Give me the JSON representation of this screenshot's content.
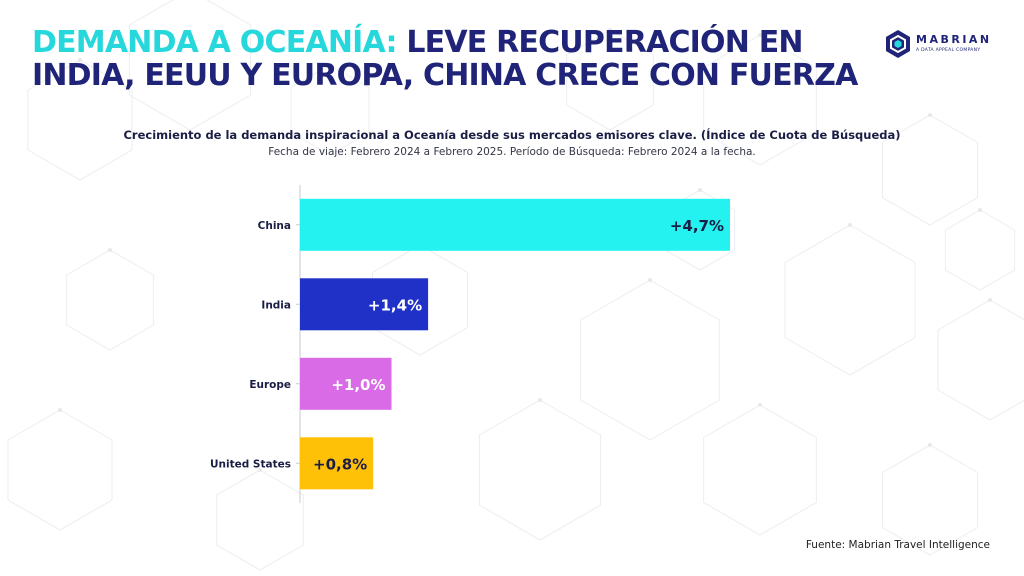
{
  "header": {
    "title_accent": "DEMANDA A OCEANÍA:",
    "title_rest": " LEVE RECUPERACIÓN EN INDIA, EEUU Y EUROPA, CHINA CRECE CON FUERZA",
    "brand_name": "MABRIAN",
    "brand_tagline": "A DATA APPEAL COMPANY"
  },
  "colors": {
    "title_accent": "#26d7dc",
    "title_main": "#1f2478",
    "china": "#24f2f0",
    "india": "#2031c7",
    "europe": "#d96be6",
    "united_states": "#ffc107"
  },
  "chart_data": {
    "type": "bar",
    "orientation": "horizontal",
    "title": "Crecimiento de la demanda inspiracional a Oceanía desde sus mercados emisores clave. (Índice de Cuota de Búsqueda)",
    "subtitle": "Fecha de viaje: Febrero 2024 a Febrero 2025. Período de Búsqueda: Febrero 2024 a la fecha.",
    "categories": [
      "China",
      "India",
      "Europe",
      "United States"
    ],
    "values": [
      4.7,
      1.4,
      1.0,
      0.8
    ],
    "data_labels": [
      "+4,7%",
      "+1,4%",
      "+1,0%",
      "+0,8%"
    ],
    "bar_colors": [
      "#24f2f0",
      "#2031c7",
      "#d96be6",
      "#ffc107"
    ],
    "label_colors": [
      "#1b1d45",
      "#ffffff",
      "#ffffff",
      "#1b1d45"
    ],
    "xlabel": "",
    "ylabel": "",
    "xlim": [
      0,
      4.7
    ],
    "grid": false,
    "legend": "none"
  },
  "footer": {
    "source": "Fuente: Mabrian Travel Intelligence"
  }
}
